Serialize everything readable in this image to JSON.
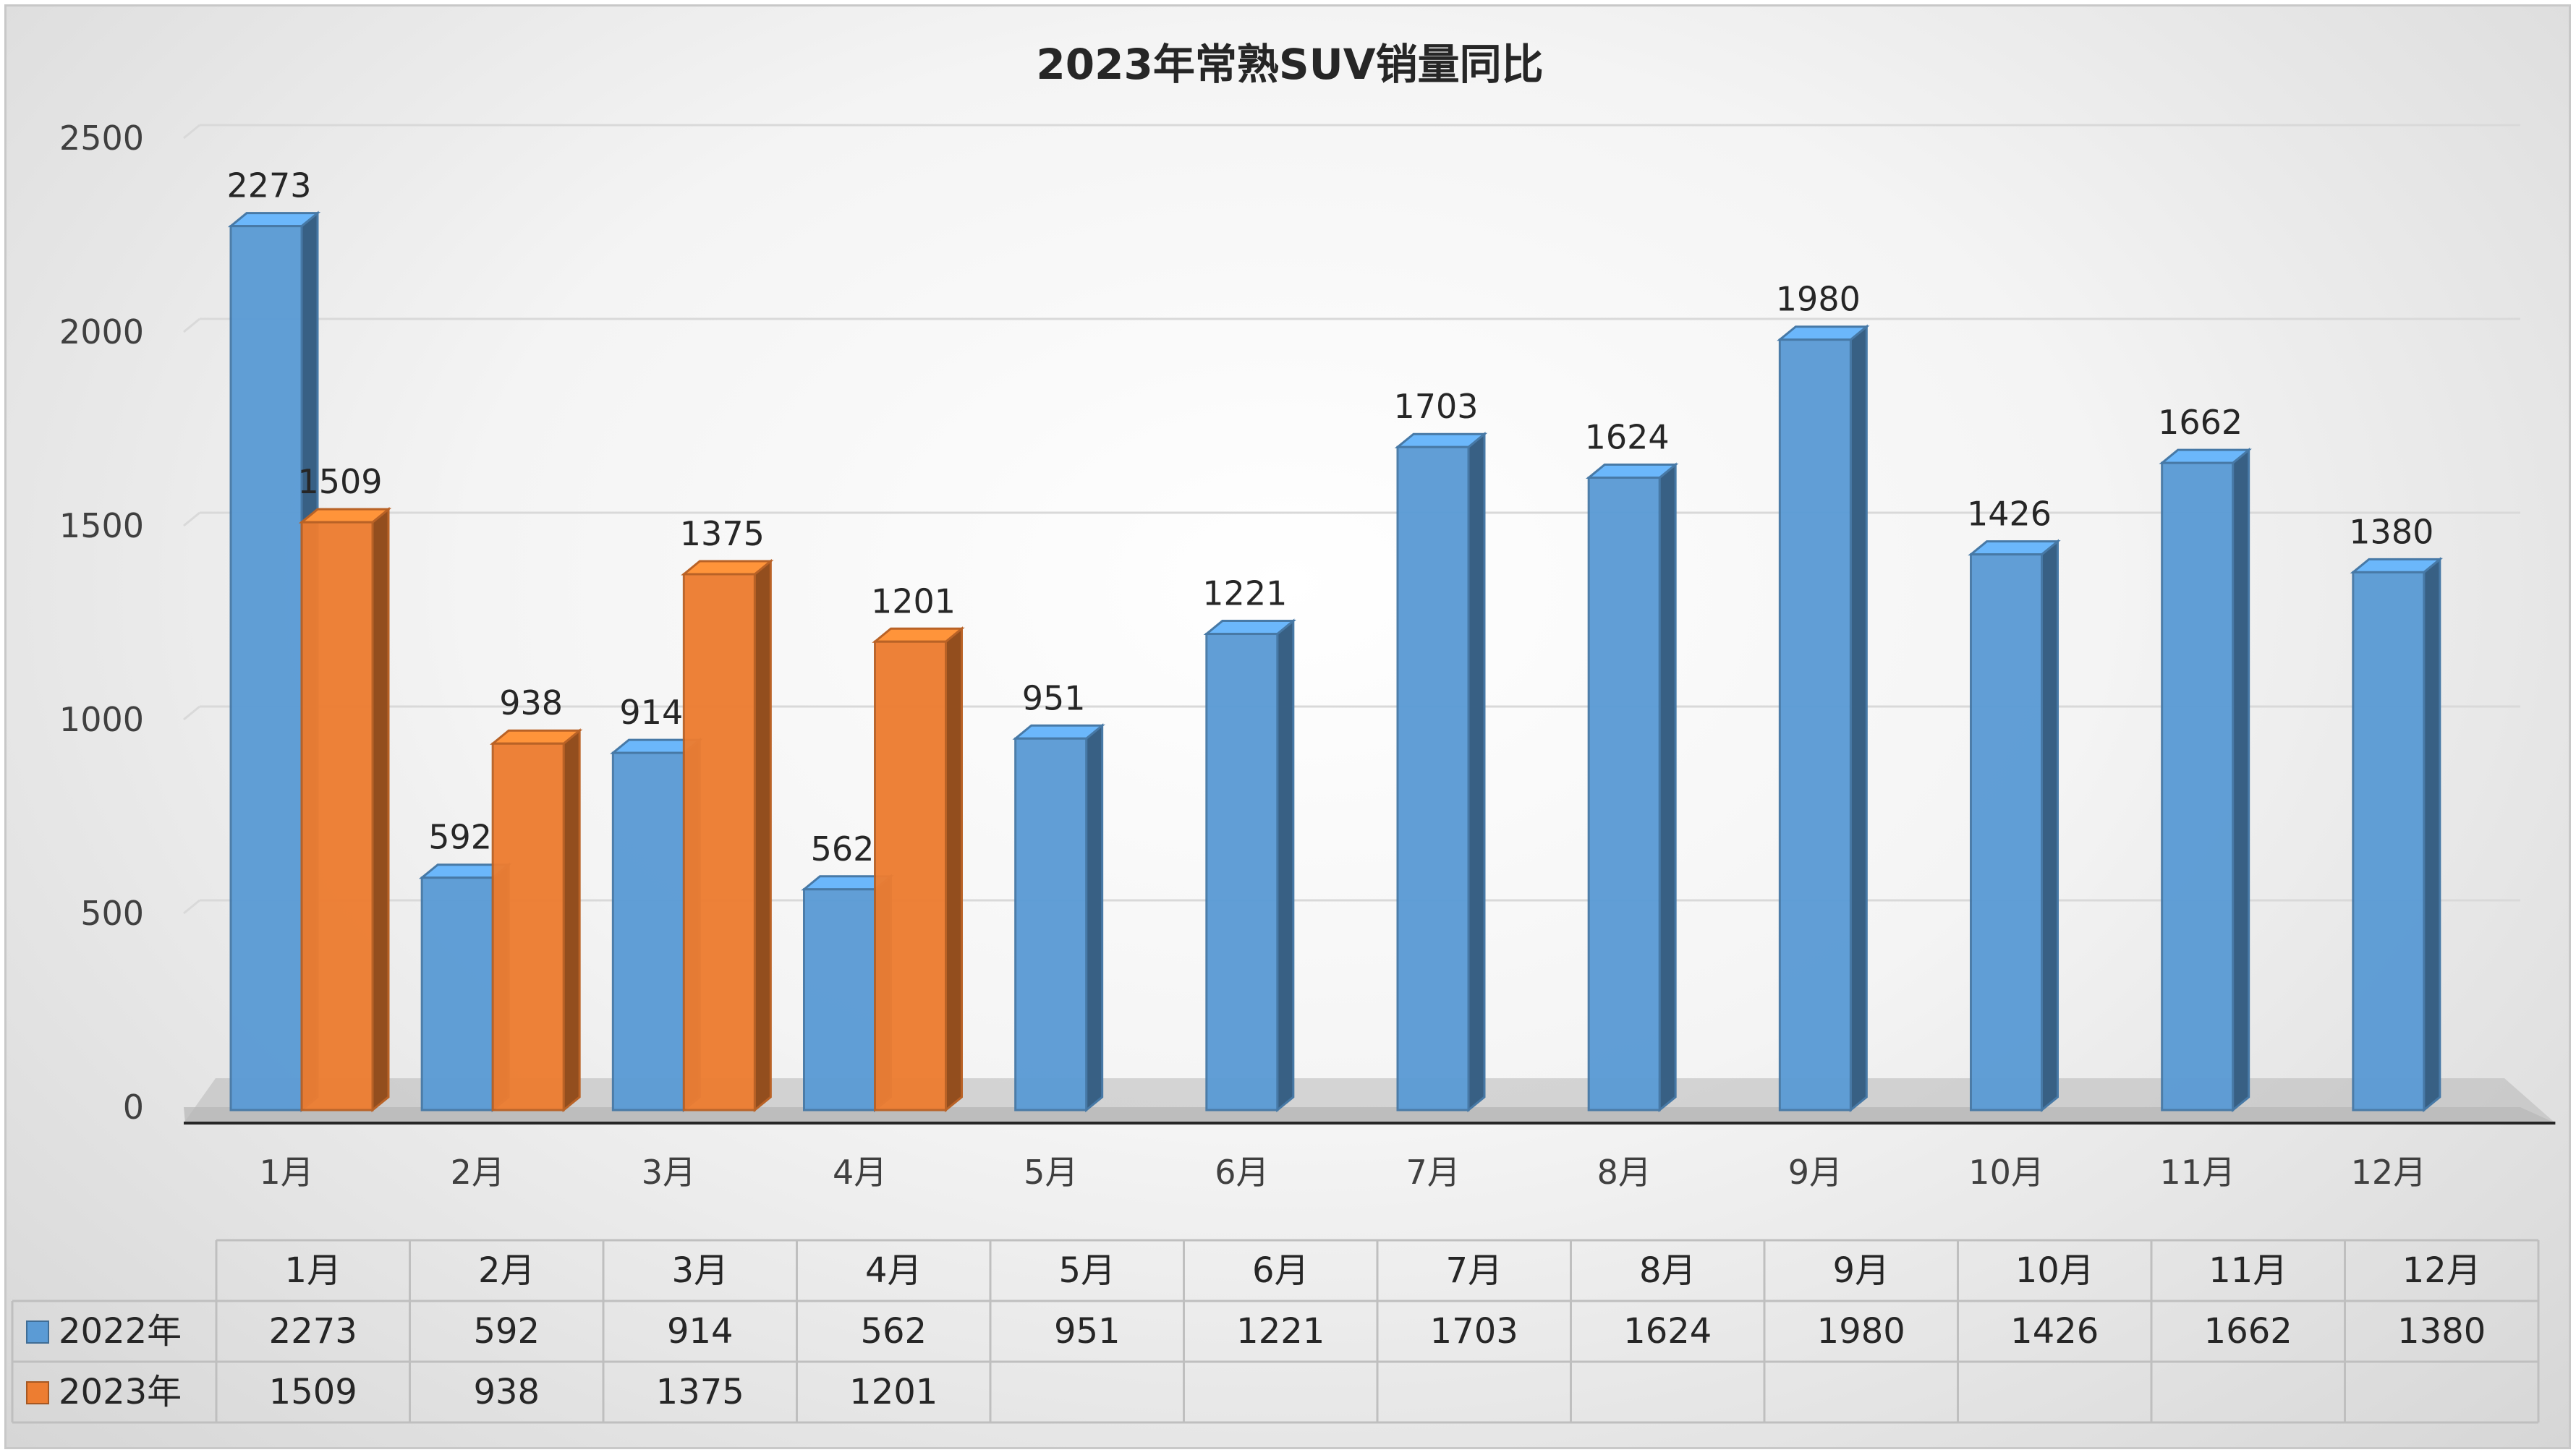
{
  "chart_data": {
    "type": "bar",
    "title": "2023年常熟SUV销量同比",
    "categories": [
      "1月",
      "2月",
      "3月",
      "4月",
      "5月",
      "6月",
      "7月",
      "8月",
      "9月",
      "10月",
      "11月",
      "12月"
    ],
    "series": [
      {
        "name": "2022年",
        "values": [
          2273,
          592,
          914,
          562,
          951,
          1221,
          1703,
          1624,
          1980,
          1426,
          1662,
          1380
        ],
        "color": "#5b9bd5"
      },
      {
        "name": "2023年",
        "values": [
          1509,
          938,
          1375,
          1201,
          null,
          null,
          null,
          null,
          null,
          null,
          null,
          null
        ],
        "color": "#ed7d31"
      }
    ],
    "ylim": [
      0,
      2500
    ],
    "yticks": [
      0,
      500,
      1000,
      1500,
      2000,
      2500
    ],
    "grid": true,
    "data_table": true,
    "style": "3d-clustered-column"
  }
}
